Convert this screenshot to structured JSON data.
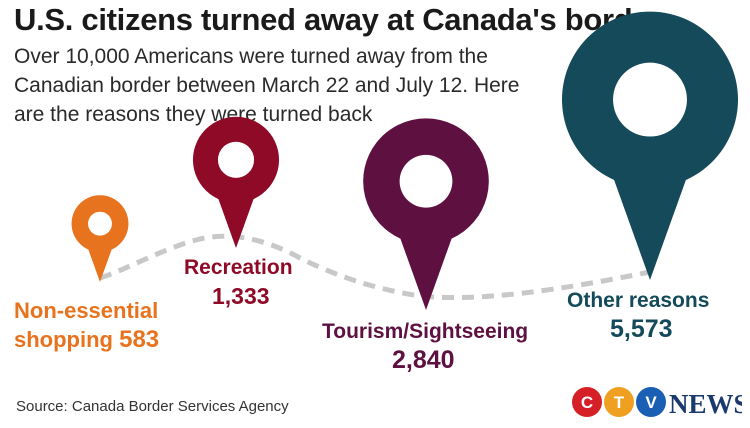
{
  "header": {
    "title": "U.S. citizens turned away at Canada's border",
    "subtitle": "Over 10,000 Americans were turned away from the Canadian border between March 22 and July 12. Here are the reasons they were turned back"
  },
  "chart_data": {
    "type": "bubble-pins",
    "categories": [
      "Non-essential shopping",
      "Recreation",
      "Tourism/Sightseeing",
      "Other reasons"
    ],
    "values": [
      583,
      1333,
      2840,
      5573
    ],
    "value_labels": [
      "583",
      "1,333",
      "2,840",
      "5,573"
    ],
    "colors": [
      "#e8731e",
      "#8f0a26",
      "#5e1140",
      "#144a5a"
    ],
    "connector": "dashed line"
  },
  "labels": {
    "shopping_line1": "Non-essential",
    "shopping_line2": "shopping",
    "shopping_value": "583",
    "recreation_name": "Recreation",
    "recreation_value": "1,333",
    "tourism_name": "Tourism/Sightseeing",
    "tourism_value": "2,840",
    "other_name": "Other reasons",
    "other_value": "5,573"
  },
  "footer": {
    "source": "Source:  Canada Border Services Agency",
    "logo_text": "CTV NEWS"
  }
}
